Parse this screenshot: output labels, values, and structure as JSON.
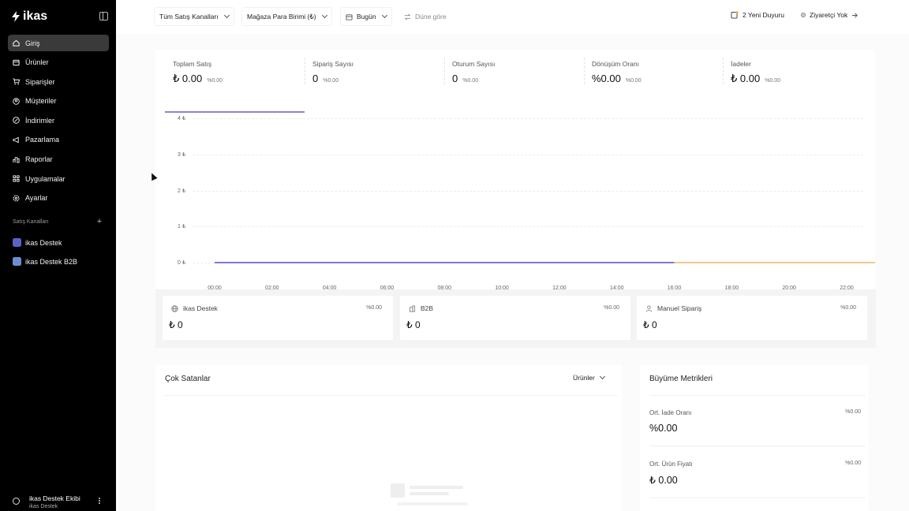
{
  "brand": {
    "name": "ikas"
  },
  "sidebar": {
    "items": [
      {
        "label": "Giriş",
        "icon": "home-icon"
      },
      {
        "label": "Ürünler",
        "icon": "box-icon"
      },
      {
        "label": "Siparişler",
        "icon": "cart-icon"
      },
      {
        "label": "Müşteriler",
        "icon": "user-circle-icon"
      },
      {
        "label": "İndirimler",
        "icon": "discount-icon"
      },
      {
        "label": "Pazarlama",
        "icon": "megaphone-icon"
      },
      {
        "label": "Raporlar",
        "icon": "chart-icon"
      },
      {
        "label": "Uygulamalar",
        "icon": "grid-icon"
      },
      {
        "label": "Ayarlar",
        "icon": "gear-icon"
      }
    ],
    "channels_title": "Satış Kanalları",
    "channels": [
      {
        "label": "ikas Destek"
      },
      {
        "label": "ikas Destek B2B"
      }
    ],
    "profile": {
      "name": "ikas Destek Ekibi",
      "sub": "ikas Destek"
    }
  },
  "topbar": {
    "channels_filter": "Tüm Satış Kanalları",
    "currency_filter": "Mağaza Para Birimi (₺)",
    "date_filter": "Bugün",
    "compare": "Düne göre",
    "announcements": "2 Yeni Duyuru",
    "visitors": "Ziyaretçi Yok"
  },
  "stats": [
    {
      "label": "Toplam Satış",
      "value": "₺ 0.00",
      "pct": "%0.00"
    },
    {
      "label": "Sipariş Sayısı",
      "value": "0",
      "pct": "%0.00"
    },
    {
      "label": "Oturum Sayısı",
      "value": "0",
      "pct": "%0.00"
    },
    {
      "label": "Dönüşüm Oranı",
      "value": "%0.00",
      "pct": "%0.00"
    },
    {
      "label": "İadeler",
      "value": "₺ 0.00",
      "pct": "%0.00"
    }
  ],
  "chart_data": {
    "type": "line",
    "title": "",
    "xlabel": "",
    "ylabel": "",
    "y_ticks": [
      "4 ₺",
      "3 ₺",
      "2 ₺",
      "1 ₺",
      "0 ₺"
    ],
    "ylim": [
      0,
      4
    ],
    "x_ticks": [
      "00:00",
      "02:00",
      "04:00",
      "06:00",
      "08:00",
      "10:00",
      "12:00",
      "14:00",
      "16:00",
      "18:00",
      "20:00",
      "22:00"
    ],
    "grid": true,
    "series": [
      {
        "color": "#7c78d6",
        "x": [
          0,
          16
        ],
        "values": [
          0,
          0
        ]
      },
      {
        "color": "#f2c98d",
        "x": [
          16,
          23
        ],
        "values": [
          0,
          0
        ]
      }
    ]
  },
  "channel_cards": [
    {
      "label": "ikas Destek",
      "icon": "globe-icon",
      "pct": "%0.00",
      "value": "₺ 0"
    },
    {
      "label": "B2B",
      "icon": "building-icon",
      "pct": "%0.00",
      "value": "₺ 0"
    },
    {
      "label": "Manuel Sipariş",
      "icon": "person-icon",
      "pct": "%0.00",
      "value": "₺ 0"
    }
  ],
  "best_sellers": {
    "title": "Çok Satanlar",
    "select": "Ürünler"
  },
  "growth": {
    "title": "Büyüme Metrikleri",
    "metrics": [
      {
        "label": "Ort. İade Oranı",
        "pct": "%0.00",
        "value": "%0.00"
      },
      {
        "label": "Ort. Ürün Fiyatı",
        "pct": "%0.00",
        "value": "₺ 0.00"
      }
    ]
  }
}
